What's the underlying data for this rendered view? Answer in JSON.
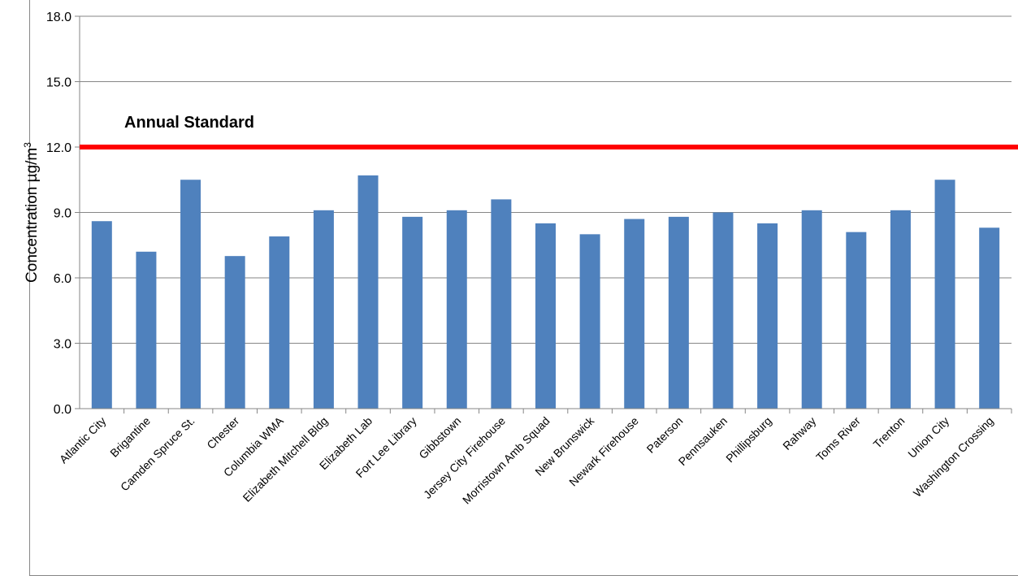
{
  "chart_data": {
    "type": "bar",
    "title": "",
    "xlabel": "",
    "ylabel": "Concentration µg/m",
    "ylabel_superscript": "3",
    "ylim": [
      0,
      18
    ],
    "yticks": [
      "0.0",
      "3.0",
      "6.0",
      "9.0",
      "12.0",
      "15.0",
      "18.0"
    ],
    "grid": true,
    "categories": [
      "Atlantic City",
      "Brigantine",
      "Camden Spruce St.",
      "Chester",
      "Columbia WMA",
      "Elizabeth Mitchell Bldg",
      "Elizabeth Lab",
      "Fort Lee Library",
      "Gibbstown",
      "Jersey City Firehouse",
      "Morristown Amb Squad",
      "New Brunswick",
      "Newark Firehouse",
      "Paterson",
      "Pennsauken",
      "Phillipsburg",
      "Rahway",
      "Toms River",
      "Trenton",
      "Union City",
      "Washington Crossing"
    ],
    "values": [
      8.6,
      7.2,
      10.5,
      7.0,
      7.9,
      9.1,
      10.7,
      8.8,
      9.1,
      9.6,
      8.5,
      8.0,
      8.7,
      8.8,
      9.0,
      8.5,
      9.1,
      8.1,
      9.1,
      10.5,
      8.3
    ],
    "bar_color": "#4f81bd",
    "reference_line": {
      "label": "Annual Standard",
      "value": 12.0,
      "color": "#ff0000"
    }
  }
}
